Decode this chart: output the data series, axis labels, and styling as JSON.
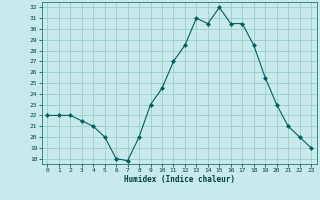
{
  "x": [
    0,
    1,
    2,
    3,
    4,
    5,
    6,
    7,
    8,
    9,
    10,
    11,
    12,
    13,
    14,
    15,
    16,
    17,
    18,
    19,
    20,
    21,
    22,
    23
  ],
  "y": [
    22.0,
    22.0,
    22.0,
    21.5,
    21.0,
    20.0,
    18.0,
    17.8,
    20.0,
    23.0,
    24.5,
    27.0,
    28.5,
    31.0,
    30.5,
    32.0,
    30.5,
    30.5,
    28.5,
    25.5,
    23.0,
    21.0,
    20.0,
    19.0
  ],
  "xlabel": "Humidex (Indice chaleur)",
  "ylim": [
    17.5,
    32.5
  ],
  "yticks": [
    18,
    19,
    20,
    21,
    22,
    23,
    24,
    25,
    26,
    27,
    28,
    29,
    30,
    31,
    32
  ],
  "xticks": [
    0,
    1,
    2,
    3,
    4,
    5,
    6,
    7,
    8,
    9,
    10,
    11,
    12,
    13,
    14,
    15,
    16,
    17,
    18,
    19,
    20,
    21,
    22,
    23
  ],
  "line_color": "#006060",
  "marker_color": "#006060",
  "bg_color": "#c8eaea",
  "grid_color": "#90c8c8",
  "font_color": "#004040"
}
